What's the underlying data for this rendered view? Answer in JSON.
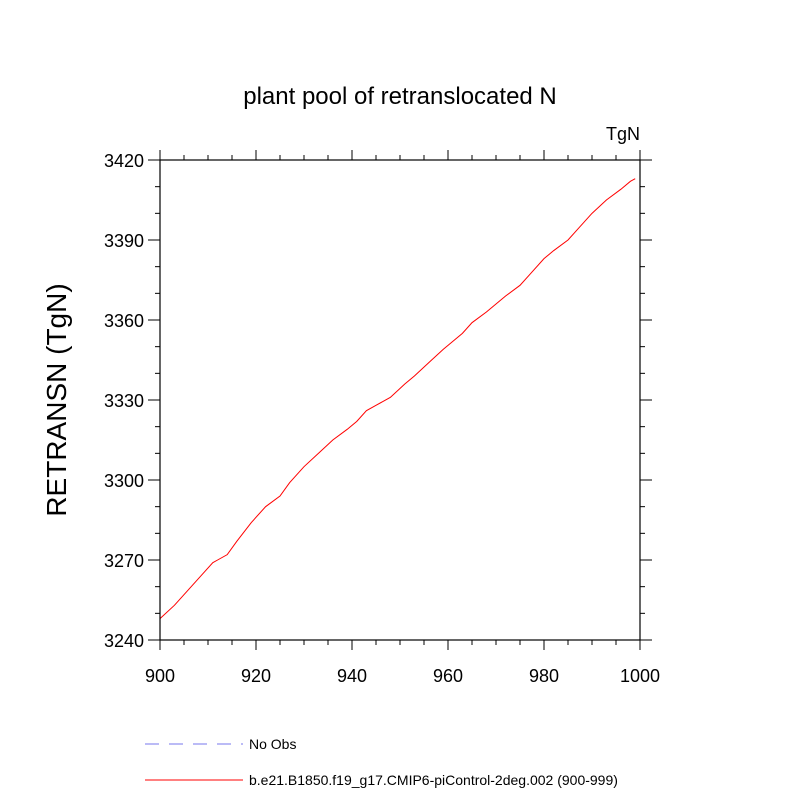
{
  "chart_data": {
    "type": "line",
    "title": "plant pool of retranslocated N",
    "units_label": "TgN",
    "ylabel": "RETRANSN  (TgN)",
    "xlabel": "",
    "xlim": [
      900,
      1000
    ],
    "ylim": [
      3240,
      3420
    ],
    "x_ticks": [
      900,
      920,
      940,
      960,
      980,
      1000
    ],
    "y_ticks": [
      3240,
      3270,
      3300,
      3330,
      3360,
      3390,
      3420
    ],
    "grid": false,
    "legend_position": "bottom-left",
    "series": [
      {
        "name": "b.e21.B1850.f19_g17.CMIP6-piControl-2deg.002 (900-999)",
        "color": "#ff0000",
        "style": "solid",
        "x": [
          900,
          903,
          906,
          909,
          911,
          912,
          914,
          916,
          919,
          922,
          925,
          927,
          930,
          933,
          936,
          939,
          941,
          943,
          945,
          948,
          951,
          953,
          956,
          959,
          961,
          963,
          965,
          968,
          970,
          972,
          975,
          977,
          980,
          982,
          985,
          987,
          990,
          993,
          996,
          998,
          999
        ],
        "y": [
          3248,
          3253,
          3259,
          3265,
          3269,
          3270,
          3272,
          3277,
          3284,
          3290,
          3294,
          3299,
          3305,
          3310,
          3315,
          3319,
          3322,
          3326,
          3328,
          3331,
          3336,
          3339,
          3344,
          3349,
          3352,
          3355,
          3359,
          3363,
          3366,
          3369,
          3373,
          3377,
          3383,
          3386,
          3390,
          3394,
          3400,
          3405,
          3409,
          3412,
          3413
        ]
      },
      {
        "name": "No Obs",
        "color": "#7777ee",
        "style": "dashed",
        "x": [],
        "y": []
      }
    ]
  }
}
